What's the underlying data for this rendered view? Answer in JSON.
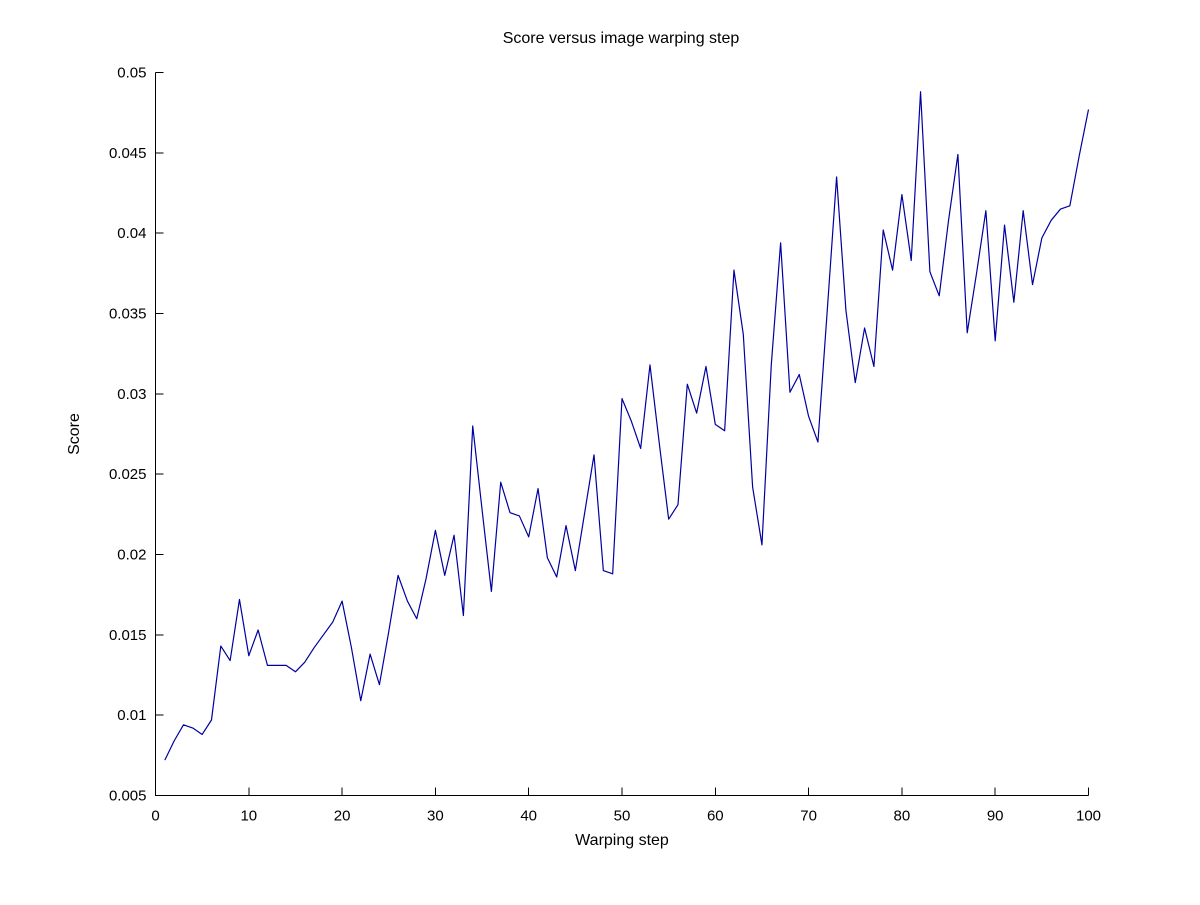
{
  "figure": {
    "title": "Score versus image warping step",
    "xlabel": "Warping step",
    "ylabel": "Score"
  },
  "style": {
    "background": "#ffffff",
    "axis_color": "#000000",
    "line_color": "#0000A0"
  },
  "chart_data": {
    "type": "line",
    "title": "Score versus image warping step",
    "xlabel": "Warping step",
    "ylabel": "Score",
    "xlim": [
      0,
      100
    ],
    "ylim": [
      0.005,
      0.05
    ],
    "grid": false,
    "legend": null,
    "x": [
      1,
      2,
      3,
      4,
      5,
      6,
      7,
      8,
      9,
      10,
      11,
      12,
      13,
      14,
      15,
      16,
      17,
      18,
      19,
      20,
      21,
      22,
      23,
      24,
      25,
      26,
      27,
      28,
      29,
      30,
      31,
      32,
      33,
      34,
      35,
      36,
      37,
      38,
      39,
      40,
      41,
      42,
      43,
      44,
      45,
      46,
      47,
      48,
      49,
      50,
      51,
      52,
      53,
      54,
      55,
      56,
      57,
      58,
      59,
      60,
      61,
      62,
      63,
      64,
      65,
      66,
      67,
      68,
      69,
      70,
      71,
      72,
      73,
      74,
      75,
      76,
      77,
      78,
      79,
      80,
      81,
      82,
      83,
      84,
      85,
      86,
      87,
      88,
      89,
      90,
      91,
      92,
      93,
      94,
      95,
      96,
      97,
      98,
      99,
      100
    ],
    "values": [
      0.0072,
      0.0084,
      0.0094,
      0.0092,
      0.0088,
      0.0097,
      0.0143,
      0.0134,
      0.0172,
      0.0137,
      0.0153,
      0.0131,
      0.0131,
      0.0131,
      0.0127,
      0.0133,
      0.0142,
      0.015,
      0.0158,
      0.0171,
      0.0142,
      0.0109,
      0.0138,
      0.0119,
      0.0152,
      0.0187,
      0.0171,
      0.016,
      0.0185,
      0.0215,
      0.0187,
      0.0212,
      0.0162,
      0.028,
      0.0228,
      0.0177,
      0.0245,
      0.0226,
      0.0224,
      0.0211,
      0.0241,
      0.0198,
      0.0186,
      0.0218,
      0.019,
      0.0226,
      0.0262,
      0.019,
      0.0188,
      0.0297,
      0.0283,
      0.0266,
      0.0318,
      0.0269,
      0.0222,
      0.0231,
      0.0306,
      0.0288,
      0.0317,
      0.0281,
      0.0277,
      0.0377,
      0.0337,
      0.0242,
      0.0206,
      0.0318,
      0.0394,
      0.0301,
      0.0312,
      0.0286,
      0.027,
      0.0352,
      0.0435,
      0.0352,
      0.0307,
      0.0341,
      0.0317,
      0.0402,
      0.0377,
      0.0424,
      0.0383,
      0.0488,
      0.0376,
      0.0361,
      0.0408,
      0.0449,
      0.0338,
      0.0375,
      0.0414,
      0.0333,
      0.0405,
      0.0357,
      0.0414,
      0.0368,
      0.0397,
      0.0408,
      0.0415,
      0.0417,
      0.0448,
      0.0477
    ],
    "xticks": [
      {
        "v": 0,
        "label": "0"
      },
      {
        "v": 10,
        "label": "10"
      },
      {
        "v": 20,
        "label": "20"
      },
      {
        "v": 30,
        "label": "30"
      },
      {
        "v": 40,
        "label": "40"
      },
      {
        "v": 50,
        "label": "50"
      },
      {
        "v": 60,
        "label": "60"
      },
      {
        "v": 70,
        "label": "70"
      },
      {
        "v": 80,
        "label": "80"
      },
      {
        "v": 90,
        "label": "90"
      },
      {
        "v": 100,
        "label": "100"
      }
    ],
    "yticks": [
      {
        "v": 0.005,
        "label": "0.005"
      },
      {
        "v": 0.01,
        "label": "0.01"
      },
      {
        "v": 0.015,
        "label": "0.015"
      },
      {
        "v": 0.02,
        "label": "0.02"
      },
      {
        "v": 0.025,
        "label": "0.025"
      },
      {
        "v": 0.03,
        "label": "0.03"
      },
      {
        "v": 0.035,
        "label": "0.035"
      },
      {
        "v": 0.04,
        "label": "0.04"
      },
      {
        "v": 0.045,
        "label": "0.045"
      },
      {
        "v": 0.05,
        "label": "0.05"
      }
    ]
  }
}
